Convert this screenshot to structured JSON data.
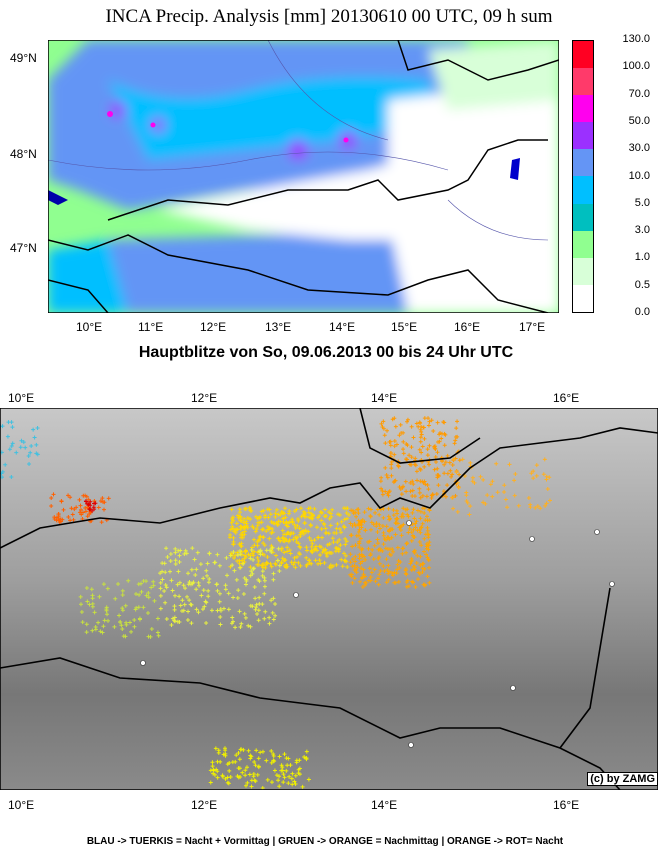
{
  "top_map": {
    "title": "INCA Precip. Analysis [mm] 20130610 00 UTC, 09 h sum",
    "lat_labels": [
      "49°N",
      "48°N",
      "47°N"
    ],
    "lon_labels": [
      "10°E",
      "11°E",
      "12°E",
      "13°E",
      "14°E",
      "15°E",
      "16°E",
      "17°E"
    ],
    "colorbar": {
      "labels": [
        "130.0",
        "100.0",
        "70.0",
        "50.0",
        "30.0",
        "10.0",
        "5.0",
        "3.0",
        "1.0",
        "0.5",
        "0.0"
      ],
      "colors": [
        "#ff0022",
        "#ff3a6a",
        "#ff00ee",
        "#9b30ff",
        "#6495f5",
        "#00bfff",
        "#00bfbf",
        "#90ff90",
        "#d8ffd8",
        "#ffffff"
      ]
    }
  },
  "lightning_map": {
    "title": "Hauptblitze von So, 09.06.2013 00 bis 24 Uhr UTC",
    "lon_labels": [
      "10°E",
      "12°E",
      "14°E",
      "16°E"
    ],
    "copyright": "(c) by ZAMG",
    "legend": "BLAU -> TUERKIS = Nacht + Vormittag | GRUEN -> ORANGE = Nachmittag | ORANGE -> ROT= Nacht"
  }
}
